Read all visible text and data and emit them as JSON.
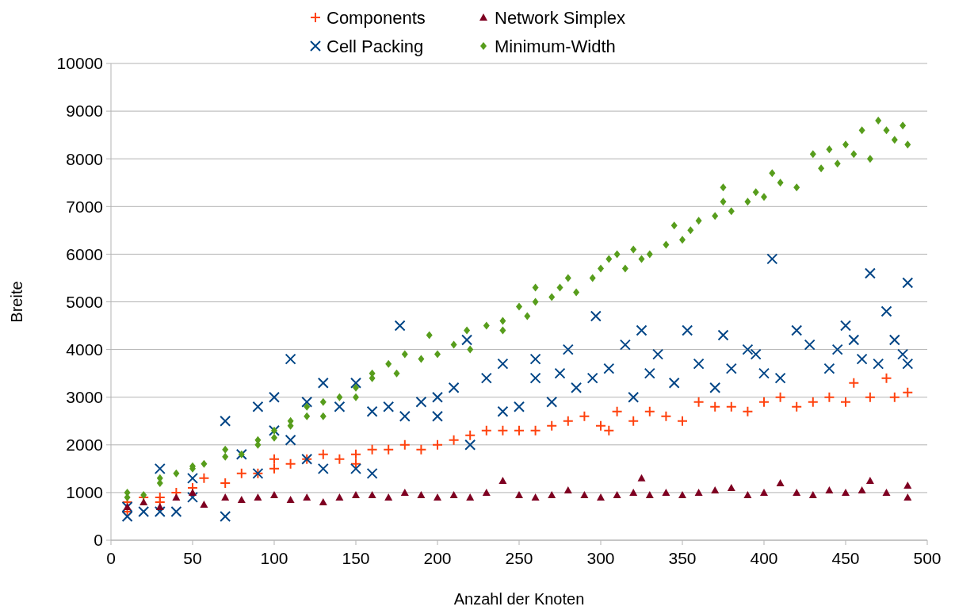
{
  "chart_data": {
    "type": "scatter",
    "xlabel": "Anzahl der Knoten",
    "ylabel": "Breite",
    "xlim": [
      0,
      500
    ],
    "ylim": [
      0,
      10000
    ],
    "xticks": [
      0,
      50,
      100,
      150,
      200,
      250,
      300,
      350,
      400,
      450,
      500
    ],
    "yticks": [
      0,
      1000,
      2000,
      3000,
      4000,
      5000,
      6000,
      7000,
      8000,
      9000,
      10000
    ],
    "grid": "y",
    "legend": "top",
    "series": [
      {
        "name": "Components",
        "color": "#ff420e",
        "marker": "cross",
        "x": [
          10,
          10,
          20,
          30,
          30,
          40,
          50,
          57,
          70,
          80,
          90,
          100,
          100,
          110,
          120,
          130,
          140,
          150,
          150,
          160,
          170,
          180,
          190,
          200,
          210,
          220,
          230,
          240,
          250,
          260,
          270,
          280,
          290,
          300,
          305,
          310,
          320,
          330,
          340,
          350,
          360,
          370,
          380,
          390,
          400,
          410,
          420,
          430,
          440,
          450,
          455,
          465,
          475,
          480,
          488
        ],
        "values": [
          800,
          600,
          900,
          900,
          800,
          1000,
          1100,
          1300,
          1200,
          1400,
          1400,
          1500,
          1700,
          1600,
          1700,
          1800,
          1700,
          1800,
          1600,
          1900,
          1900,
          2000,
          1900,
          2000,
          2100,
          2200,
          2300,
          2300,
          2300,
          2300,
          2400,
          2500,
          2600,
          2400,
          2300,
          2700,
          2500,
          2700,
          2600,
          2500,
          2900,
          2800,
          2800,
          2700,
          2900,
          3000,
          2800,
          2900,
          3000,
          2900,
          3300,
          3000,
          3400,
          3000,
          3100
        ]
      },
      {
        "name": "Cell Packing",
        "color": "#004586",
        "marker": "x",
        "x": [
          10,
          10,
          20,
          30,
          30,
          40,
          50,
          50,
          70,
          70,
          80,
          90,
          90,
          100,
          100,
          110,
          110,
          120,
          120,
          130,
          130,
          140,
          150,
          150,
          160,
          160,
          170,
          177,
          180,
          190,
          200,
          200,
          210,
          218,
          220,
          230,
          240,
          240,
          250,
          260,
          260,
          270,
          275,
          280,
          285,
          295,
          297,
          305,
          315,
          320,
          325,
          330,
          335,
          345,
          353,
          360,
          370,
          375,
          380,
          390,
          395,
          400,
          405,
          410,
          420,
          428,
          440,
          445,
          450,
          455,
          460,
          465,
          470,
          475,
          480,
          485,
          488,
          488
        ],
        "values": [
          500,
          700,
          600,
          1500,
          600,
          600,
          1300,
          900,
          2500,
          500,
          1800,
          2800,
          1400,
          3000,
          2300,
          3800,
          2100,
          2900,
          1700,
          3300,
          1500,
          2800,
          3300,
          1500,
          1400,
          2700,
          2800,
          4500,
          2600,
          2900,
          2600,
          3000,
          3200,
          4200,
          2000,
          3400,
          3700,
          2700,
          2800,
          3800,
          3400,
          2900,
          3500,
          4000,
          3200,
          3400,
          4700,
          3600,
          4100,
          3000,
          4400,
          3500,
          3900,
          3300,
          4400,
          3700,
          3200,
          4300,
          3600,
          4000,
          3900,
          3500,
          5900,
          3400,
          4400,
          4100,
          3600,
          4000,
          4500,
          4200,
          3800,
          5600,
          3700,
          4800,
          4200,
          3900,
          5400,
          3700
        ]
      },
      {
        "name": "Network Simplex",
        "color": "#7e0021",
        "marker": "triangle",
        "x": [
          10,
          20,
          30,
          40,
          50,
          57,
          70,
          80,
          90,
          100,
          110,
          120,
          130,
          140,
          150,
          160,
          170,
          180,
          190,
          200,
          210,
          220,
          230,
          240,
          250,
          260,
          270,
          280,
          290,
          300,
          310,
          320,
          325,
          330,
          340,
          350,
          360,
          370,
          380,
          390,
          400,
          410,
          420,
          430,
          440,
          450,
          460,
          465,
          475,
          488,
          488
        ],
        "values": [
          700,
          800,
          700,
          900,
          1000,
          750,
          900,
          850,
          900,
          950,
          850,
          900,
          800,
          900,
          950,
          950,
          900,
          1000,
          950,
          900,
          950,
          900,
          1000,
          1250,
          950,
          900,
          950,
          1050,
          950,
          900,
          950,
          1000,
          1300,
          950,
          1000,
          950,
          1000,
          1050,
          1100,
          950,
          1000,
          1200,
          1000,
          950,
          1050,
          1000,
          1050,
          1250,
          1000,
          1150,
          900
        ]
      },
      {
        "name": "Minimum-Width",
        "color": "#579d1c",
        "marker": "diamond",
        "x": [
          10,
          10,
          20,
          30,
          30,
          40,
          50,
          50,
          57,
          70,
          70,
          80,
          90,
          90,
          100,
          100,
          110,
          110,
          120,
          120,
          130,
          130,
          140,
          150,
          150,
          160,
          160,
          170,
          175,
          180,
          190,
          195,
          200,
          210,
          218,
          220,
          230,
          240,
          240,
          250,
          255,
          260,
          260,
          270,
          275,
          280,
          285,
          295,
          300,
          305,
          310,
          315,
          320,
          325,
          330,
          340,
          345,
          350,
          355,
          360,
          370,
          375,
          375,
          380,
          390,
          395,
          400,
          405,
          410,
          420,
          430,
          435,
          440,
          445,
          450,
          455,
          460,
          465,
          470,
          475,
          480,
          485,
          488
        ],
        "values": [
          1000,
          900,
          950,
          1200,
          1300,
          1400,
          1500,
          1550,
          1600,
          1900,
          1750,
          1800,
          2100,
          2000,
          2300,
          2150,
          2500,
          2400,
          2800,
          2600,
          2600,
          2900,
          3000,
          3200,
          3000,
          3400,
          3500,
          3700,
          3500,
          3900,
          3800,
          4300,
          3900,
          4100,
          4400,
          4000,
          4500,
          4600,
          4400,
          4900,
          4700,
          5300,
          5000,
          5100,
          5300,
          5500,
          5200,
          5500,
          5700,
          5900,
          6000,
          5700,
          6100,
          5900,
          6000,
          6200,
          6600,
          6300,
          6500,
          6700,
          6800,
          7100,
          7400,
          6900,
          7100,
          7300,
          7200,
          7700,
          7500,
          7400,
          8100,
          7800,
          8200,
          7900,
          8300,
          8100,
          8600,
          8000,
          8800,
          8600,
          8400,
          8700,
          8300
        ]
      }
    ]
  }
}
